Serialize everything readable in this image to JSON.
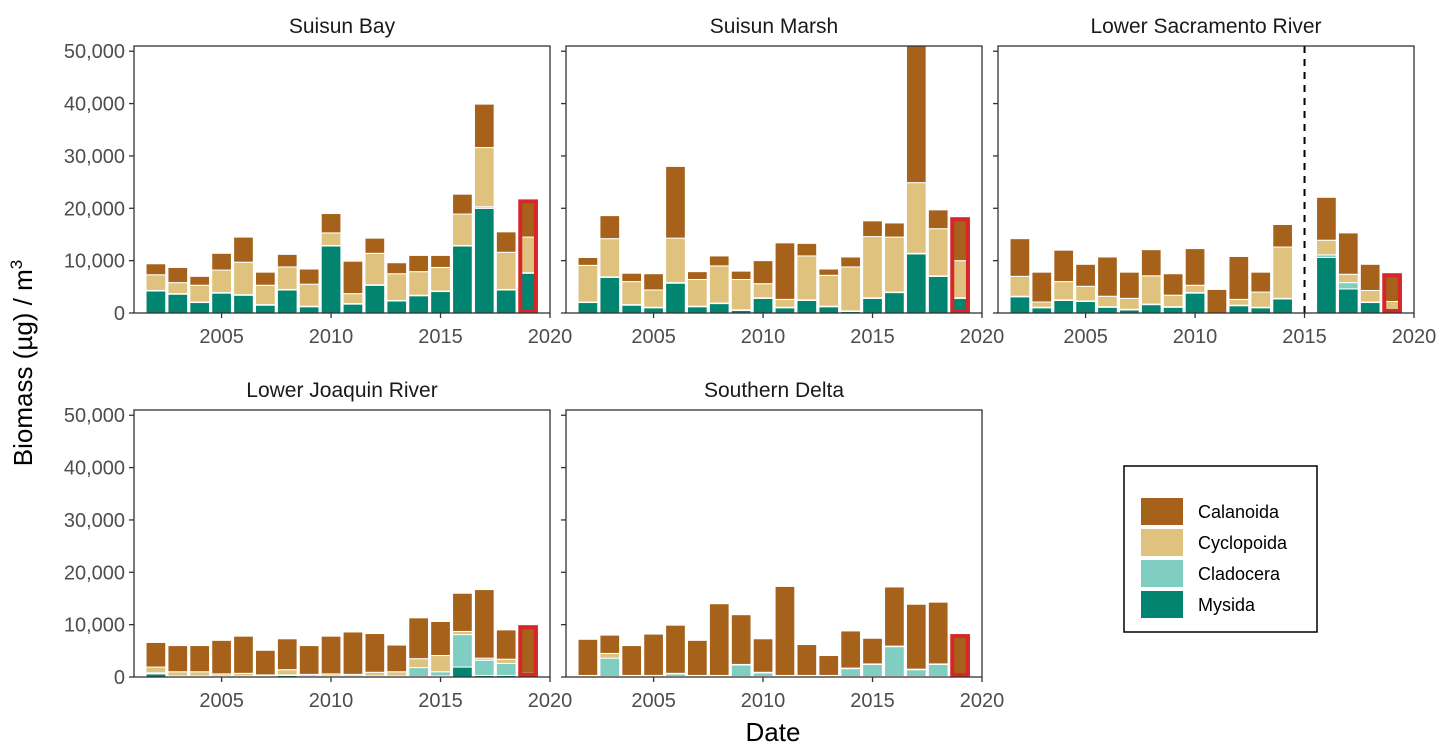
{
  "chart_data": {
    "type": "bar",
    "stacked": true,
    "xlabel": "Date",
    "ylabel": "Biomass (µg) / m",
    "ylabel_superscript": "3",
    "ylim": [
      0,
      51000
    ],
    "xlim": [
      2001,
      2020
    ],
    "y_ticks": [
      0,
      10000,
      20000,
      30000,
      40000,
      50000
    ],
    "y_tick_labels": [
      "0",
      "10,000",
      "20,000",
      "30,000",
      "40,000",
      "50,000"
    ],
    "x_ticks": [
      2005,
      2010,
      2015,
      2020
    ],
    "x_tick_labels": [
      "2005",
      "2010",
      "2015",
      "2020"
    ],
    "grid": false,
    "legend_position": "right",
    "series_order": [
      "Mysida",
      "Cladocera",
      "Cyclopoida",
      "Calanoida"
    ],
    "legend": [
      {
        "name": "Calanoida",
        "color": "#A6611A"
      },
      {
        "name": "Cyclopoida",
        "color": "#DFC27D"
      },
      {
        "name": "Cladocera",
        "color": "#80CDC1"
      },
      {
        "name": "Mysida",
        "color": "#018571"
      }
    ],
    "highlight_color": "#D62728",
    "highlight_year": 2019,
    "panels": [
      {
        "title": "Suisun Bay",
        "years": [
          2002,
          2003,
          2004,
          2005,
          2006,
          2007,
          2008,
          2009,
          2010,
          2011,
          2012,
          2013,
          2014,
          2015,
          2016,
          2017,
          2018,
          2019
        ],
        "series": [
          {
            "name": "Mysida",
            "values": [
              4200,
              3600,
              2000,
              3800,
              3400,
              1500,
              4400,
              1200,
              12800,
              1700,
              5300,
              2300,
              3300,
              4100,
              12800,
              20000,
              4400,
              7600
            ]
          },
          {
            "name": "Cladocera",
            "values": [
              100,
              100,
              100,
              100,
              100,
              100,
              100,
              100,
              100,
              100,
              100,
              100,
              100,
              100,
              100,
              300,
              100,
              100
            ]
          },
          {
            "name": "Cyclopoida",
            "values": [
              3000,
              2100,
              3200,
              4300,
              6200,
              3700,
              4300,
              4200,
              2400,
              1900,
              6000,
              5100,
              4500,
              4500,
              6000,
              11300,
              7100,
              6800
            ]
          },
          {
            "name": "Calanoida",
            "values": [
              2100,
              2900,
              1700,
              3200,
              4800,
              2500,
              2400,
              2900,
              3700,
              6200,
              2900,
              2100,
              3100,
              2300,
              3800,
              8300,
              3900,
              7200
            ]
          }
        ],
        "divider_year": null
      },
      {
        "title": "Suisun Marsh",
        "years": [
          2002,
          2003,
          2004,
          2005,
          2006,
          2007,
          2008,
          2009,
          2010,
          2011,
          2012,
          2013,
          2014,
          2015,
          2016,
          2017,
          2018,
          2019
        ],
        "series": [
          {
            "name": "Mysida",
            "values": [
              2000,
              6800,
              1500,
              1000,
              5700,
              1200,
              1800,
              500,
              2800,
              1000,
              2400,
              1200,
              300,
              2800,
              3900,
              11300,
              7000,
              2800
            ]
          },
          {
            "name": "Cladocera",
            "values": [
              100,
              100,
              100,
              100,
              100,
              100,
              100,
              100,
              100,
              100,
              100,
              100,
              100,
              100,
              100,
              100,
              100,
              100
            ]
          },
          {
            "name": "Cyclopoida",
            "values": [
              7000,
              7300,
              4400,
              3300,
              8500,
              5100,
              7100,
              5800,
              2700,
              1500,
              8400,
              5900,
              8400,
              11700,
              10500,
              13500,
              9000,
              7100
            ]
          },
          {
            "name": "Calanoida",
            "values": [
              1500,
              4400,
              1600,
              3100,
              13700,
              1500,
              1900,
              1600,
              4400,
              10800,
              2400,
              1200,
              1900,
              3000,
              2700,
              26100,
              3600,
              8300
            ]
          }
        ],
        "divider_year": null
      },
      {
        "title": "Lower Sacramento River",
        "years": [
          2002,
          2003,
          2004,
          2005,
          2006,
          2007,
          2008,
          2009,
          2010,
          2011,
          2012,
          2013,
          2014,
          2016,
          2017,
          2018,
          2019
        ],
        "series": [
          {
            "name": "Mysida",
            "values": [
              3100,
              1000,
              2400,
              2200,
              1100,
              600,
              1600,
              1100,
              3800,
              0,
              1400,
              1000,
              2700,
              10600,
              4600,
              2000,
              200
            ]
          },
          {
            "name": "Cladocera",
            "values": [
              100,
              100,
              100,
              100,
              100,
              100,
              100,
              100,
              100,
              0,
              100,
              100,
              100,
              500,
              1200,
              100,
              100
            ]
          },
          {
            "name": "Cyclopoida",
            "values": [
              3800,
              1000,
              3500,
              2800,
              2000,
              2100,
              5400,
              2200,
              1400,
              0,
              1100,
              2900,
              9800,
              2800,
              1600,
              2200,
              1900
            ]
          },
          {
            "name": "Calanoida",
            "values": [
              7200,
              5700,
              6000,
              4200,
              7500,
              5000,
              5000,
              4100,
              7000,
              4500,
              8200,
              3800,
              4300,
              8200,
              7900,
              5000,
              5400
            ]
          }
        ],
        "divider_year": 2015
      },
      {
        "title": "Lower Joaquin River",
        "years": [
          2002,
          2003,
          2004,
          2005,
          2006,
          2007,
          2008,
          2009,
          2010,
          2011,
          2012,
          2013,
          2014,
          2015,
          2016,
          2017,
          2018,
          2019
        ],
        "series": [
          {
            "name": "Mysida",
            "values": [
              600,
              100,
              100,
              100,
              100,
              100,
              300,
              100,
              100,
              100,
              100,
              100,
              100,
              200,
              1900,
              300,
              300,
              100
            ]
          },
          {
            "name": "Cladocera",
            "values": [
              200,
              100,
              100,
              100,
              100,
              100,
              100,
              100,
              100,
              100,
              100,
              100,
              1700,
              800,
              6200,
              2900,
              2300,
              200
            ]
          },
          {
            "name": "Cyclopoida",
            "values": [
              1100,
              800,
              800,
              400,
              500,
              200,
              1000,
              300,
              400,
              300,
              700,
              800,
              1700,
              3100,
              600,
              400,
              800,
              400
            ]
          },
          {
            "name": "Calanoida",
            "values": [
              4700,
              5000,
              5000,
              6400,
              7100,
              4700,
              5900,
              5500,
              7200,
              8100,
              7400,
              5100,
              7800,
              6500,
              7300,
              13100,
              5600,
              9200
            ]
          }
        ],
        "divider_year": null
      },
      {
        "title": "Southern Delta",
        "years": [
          2002,
          2003,
          2004,
          2005,
          2006,
          2007,
          2008,
          2009,
          2010,
          2011,
          2012,
          2013,
          2014,
          2015,
          2016,
          2017,
          2018,
          2019
        ],
        "series": [
          {
            "name": "Mysida",
            "values": [
              100,
              100,
              100,
              100,
              100,
              100,
              100,
              100,
              100,
              100,
              100,
              100,
              100,
              100,
              100,
              100,
              100,
              100
            ]
          },
          {
            "name": "Cladocera",
            "values": [
              100,
              3500,
              100,
              100,
              500,
              100,
              100,
              2200,
              700,
              100,
              100,
              100,
              1500,
              2300,
              5700,
              1300,
              2300,
              400
            ]
          },
          {
            "name": "Cyclopoida",
            "values": [
              100,
              900,
              100,
              100,
              100,
              100,
              100,
              100,
              100,
              100,
              100,
              100,
              100,
              100,
              100,
              100,
              100,
              100
            ]
          },
          {
            "name": "Calanoida",
            "values": [
              6900,
              3500,
              5700,
              7900,
              9200,
              6700,
              13700,
              9500,
              6400,
              17000,
              5900,
              3800,
              7100,
              4900,
              11300,
              12400,
              11800,
              7600
            ]
          }
        ],
        "divider_year": null
      }
    ]
  }
}
